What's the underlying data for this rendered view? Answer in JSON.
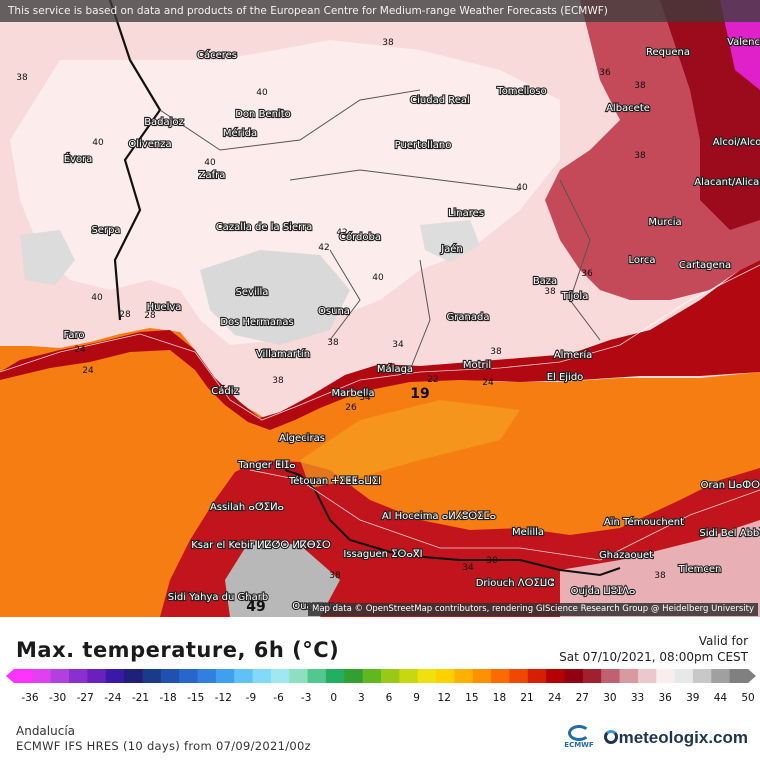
{
  "header": {
    "notice": "This service is based on data and products of the European Centre for Medium-range Weather Forecasts (ECMWF)"
  },
  "map": {
    "credit": "Map data © OpenStreetMap contributors, rendering GIScience Research Group @ Heidelberg University",
    "cities": [
      "Cáceres",
      "Badajoz",
      "Mérida",
      "Don Benito",
      "Évora",
      "Olivenza",
      "Zafra",
      "Serpa",
      "Cazalla de la Sierra",
      "Córdoba",
      "Huelva",
      "Faro",
      "Sevilla",
      "Dos Hermanas",
      "Osuna",
      "Villamartín",
      "Cádiz",
      "Málaga",
      "Marbella",
      "Algeciras",
      "Tanger ⵟⵏⵊⴰ",
      "Tétouan ⵜⵉⵟⵟⴰⵡⵉⵏ",
      "Assilah ⴰⵚⵉⵍⴰ",
      "Ksar el Kebir ⵍⵇⵚⵔ ⵍⴽⴱⵉⵔ",
      "Sidi Yahya du Gharb",
      "Ouazzane",
      "Granada",
      "Jaén",
      "Linares",
      "Puertollano",
      "Ciudad Real",
      "Tomelloso",
      "Albacete",
      "Requena",
      "Alcoi/Alcoy",
      "Alacant/Alicante",
      "Murcia",
      "Lorca",
      "Cartagena",
      "Baza",
      "Tíjola",
      "Almería",
      "El Ejido",
      "Motril",
      "Al Hoceima ⴰⵍⵃⵓⵙⵉⵎⴰ",
      "Melilla",
      "Issaguen ⵉⵙⴰⴳⵏ",
      "Driouch ⴷⵔⵉⵡⵛ",
      "Oujda ⵡⵓⵊⴷⴰ",
      "Ghazaouet",
      "Aïn Témouchent",
      "Sidi Bel Abbès",
      "Tlemcen",
      "Oran ⵡⴰⵀⵔⴰⵏ",
      "Valencia"
    ],
    "contour_labels": [
      "38",
      "40",
      "40",
      "40",
      "42",
      "42",
      "40",
      "40",
      "40",
      "38",
      "36",
      "38",
      "36",
      "38",
      "38",
      "38",
      "34",
      "34",
      "24",
      "24",
      "22",
      "24",
      "26",
      "28",
      "28",
      "38",
      "38",
      "34",
      "30",
      "38",
      "38"
    ],
    "value_labels": [
      "19",
      "49"
    ],
    "colors": {
      "sea": "#f57d12",
      "land_hot": "#c8000e",
      "land_warm": "#f2c4c6",
      "land_pale": "#fbe4e4",
      "land_grey": "#d8d8d8"
    }
  },
  "footer": {
    "title": "Max. temperature, 6h (°C)",
    "valid_label": "Valid for",
    "valid_time": "Sat 07/10/2021, 08:00pm CEST",
    "region": "Andalucía",
    "model": "ECMWF IFS HRES (10 days) from 07/09/2021/00z",
    "ecmwf_label": "ECMWF",
    "brand": "meteologix.com"
  },
  "legend": {
    "labels": [
      "-36",
      "-30",
      "-27",
      "-24",
      "-21",
      "-18",
      "-15",
      "-12",
      "-9",
      "-6",
      "-3",
      "0",
      "3",
      "6",
      "9",
      "12",
      "15",
      "18",
      "21",
      "24",
      "27",
      "30",
      "33",
      "36",
      "39",
      "44",
      "50"
    ],
    "colors": [
      "#ff33ff",
      "#e040f0",
      "#b040e0",
      "#8a30d0",
      "#6a20c0",
      "#3a18a8",
      "#20207c",
      "#1c3a8c",
      "#2050b0",
      "#2866cc",
      "#3080e0",
      "#40a0f0",
      "#60c0f8",
      "#80daf8",
      "#a0e8f0",
      "#8ce0c0",
      "#50c890",
      "#20b060",
      "#30a030",
      "#60b820",
      "#98c818",
      "#c8d810",
      "#f0e010",
      "#ffd000",
      "#ffb000",
      "#ff9000",
      "#ff6a00",
      "#f04800",
      "#d81e00",
      "#b80000",
      "#900010",
      "#a02030",
      "#c06070",
      "#d89aa0",
      "#ecc8cc",
      "#f8eeee",
      "#e8e8e8",
      "#c8c8c8",
      "#a0a0a0",
      "#808080"
    ]
  }
}
